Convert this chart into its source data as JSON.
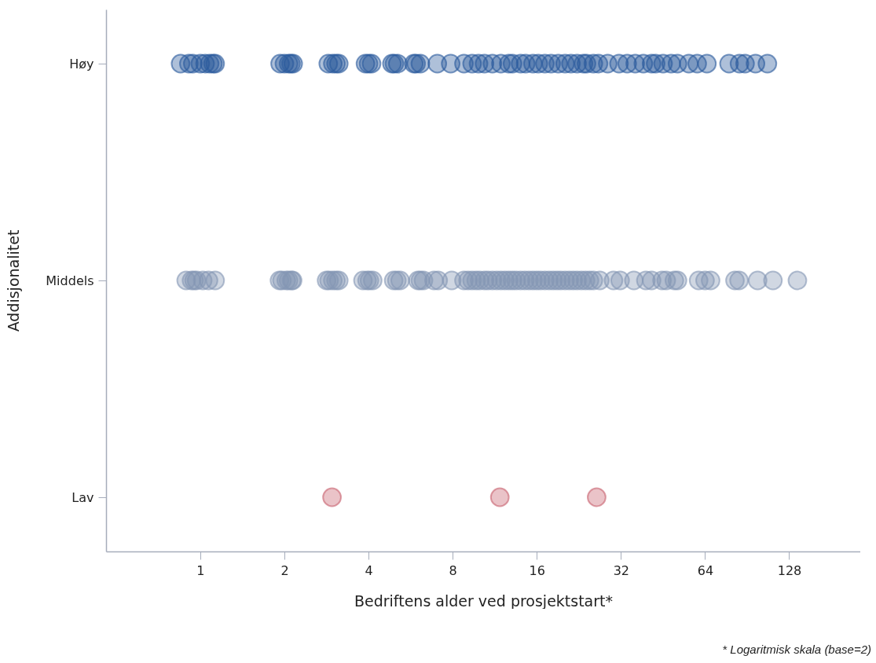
{
  "chart_data": {
    "type": "scatter",
    "orientation": "horizontal",
    "xlabel": "Bedriftens alder ved prosjektstart*",
    "ylabel": "Addisjonalitet",
    "annotations": [
      "* Logaritmisk skala (base=2)"
    ],
    "categories": [
      "Høy",
      "Middels",
      "Lav"
    ],
    "log": "x",
    "marker": "circle",
    "xlim": [
      0.46,
      230
    ],
    "xticks": [
      1,
      2,
      4,
      8,
      16,
      32,
      64,
      128
    ],
    "series": [
      {
        "color": "#2a5a9c",
        "x": [
          "Høy",
          "Høy",
          "Høy",
          "Høy",
          "Høy",
          "Høy",
          "Høy",
          "Høy",
          "Høy",
          "Høy",
          "Høy",
          "Høy",
          "Høy",
          "Høy",
          "Høy",
          "Høy",
          "Høy",
          "Høy",
          "Høy",
          "Høy",
          "Høy",
          "Høy",
          "Høy",
          "Høy",
          "Høy",
          "Høy",
          "Høy",
          "Høy",
          "Høy",
          "Høy",
          "Høy",
          "Høy",
          "Høy",
          "Høy",
          "Høy",
          "Høy",
          "Høy",
          "Høy",
          "Høy",
          "Høy",
          "Høy",
          "Høy",
          "Høy",
          "Høy",
          "Høy",
          "Høy",
          "Høy",
          "Høy",
          "Høy",
          "Høy",
          "Høy",
          "Høy",
          "Høy",
          "Høy",
          "Høy",
          "Høy",
          "Høy",
          "Høy",
          "Høy",
          "Høy",
          "Høy",
          "Høy",
          "Høy",
          "Høy",
          "Høy",
          "Høy",
          "Høy",
          "Høy"
        ],
        "values": [
          0.85,
          0.91,
          0.94,
          1,
          1.04,
          1.08,
          1.11,
          1.13,
          1.93,
          2,
          2.07,
          2.11,
          2.15,
          2.87,
          2.98,
          3.06,
          3.13,
          3.9,
          4,
          4.1,
          4.85,
          4.95,
          5.09,
          5.81,
          5.92,
          6.13,
          7.05,
          7.87,
          8.78,
          9.39,
          9.9,
          10.4,
          11.1,
          11.9,
          12.7,
          13.1,
          14,
          14.6,
          15.5,
          16.2,
          17.1,
          18,
          19.1,
          20.2,
          21.2,
          22.3,
          23.5,
          24.1,
          25.5,
          26.6,
          28.7,
          31.5,
          33.7,
          36,
          38.5,
          41.2,
          42.6,
          45.3,
          48.4,
          51,
          56,
          60,
          65,
          78,
          85,
          89,
          97,
          107
        ]
      },
      {
        "color": "#8496b4",
        "x": [
          "Middels",
          "Middels",
          "Middels",
          "Middels",
          "Middels",
          "Middels",
          "Middels",
          "Middels",
          "Middels",
          "Middels",
          "Middels",
          "Middels",
          "Middels",
          "Middels",
          "Middels",
          "Middels",
          "Middels",
          "Middels",
          "Middels",
          "Middels",
          "Middels",
          "Middels",
          "Middels",
          "Middels",
          "Middels",
          "Middels",
          "Middels",
          "Middels",
          "Middels",
          "Middels",
          "Middels",
          "Middels",
          "Middels",
          "Middels",
          "Middels",
          "Middels",
          "Middels",
          "Middels",
          "Middels",
          "Middels",
          "Middels",
          "Middels",
          "Middels",
          "Middels",
          "Middels",
          "Middels",
          "Middels",
          "Middels",
          "Middels",
          "Middels",
          "Middels",
          "Middels",
          "Middels",
          "Middels",
          "Middels",
          "Middels",
          "Middels",
          "Middels",
          "Middels",
          "Middels",
          "Middels",
          "Middels",
          "Middels",
          "Middels",
          "Middels",
          "Middels",
          "Middels",
          "Middels",
          "Middels",
          "Middels",
          "Middels",
          "Middels",
          "Middels",
          "Middels",
          "Middels",
          "Middels",
          "Middels",
          "Middels",
          "Middels",
          "Middels",
          "Middels",
          "Middels"
        ],
        "values": [
          0.89,
          0.93,
          0.95,
          0.97,
          1.02,
          1.07,
          1.13,
          1.92,
          1.96,
          2.03,
          2.07,
          2.12,
          2.14,
          2.83,
          2.89,
          2.98,
          3.06,
          3.13,
          3.82,
          3.95,
          4.03,
          4.14,
          4.92,
          5.05,
          5.19,
          6.01,
          6.13,
          6.29,
          6.86,
          7.1,
          7.94,
          8.78,
          9.08,
          9.39,
          9.71,
          10,
          10.4,
          10.7,
          11.1,
          11.5,
          11.9,
          12.3,
          12.7,
          13.1,
          13.5,
          14,
          14.5,
          15,
          15.5,
          16,
          16.5,
          17.1,
          17.7,
          18.3,
          18.9,
          19.5,
          20.2,
          20.9,
          21.6,
          22.3,
          23.1,
          23.9,
          24.7,
          25.5,
          26.9,
          30.1,
          31.8,
          35.6,
          39.3,
          41.2,
          44.9,
          46.5,
          49.7,
          51,
          60.7,
          64,
          67,
          81.9,
          84.7,
          98.7,
          112,
          137
        ]
      },
      {
        "color": "#c8606e",
        "x": [
          "Lav",
          "Lav",
          "Lav"
        ],
        "values": [
          2.96,
          11.8,
          26.2
        ]
      }
    ]
  }
}
